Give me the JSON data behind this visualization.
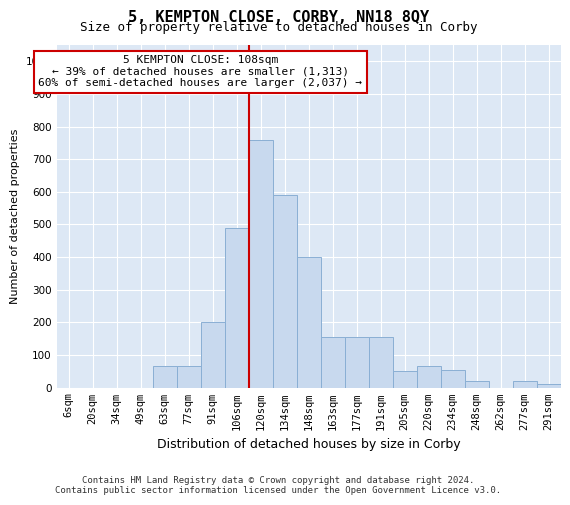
{
  "title": "5, KEMPTON CLOSE, CORBY, NN18 8QY",
  "subtitle": "Size of property relative to detached houses in Corby",
  "xlabel": "Distribution of detached houses by size in Corby",
  "ylabel": "Number of detached properties",
  "footer_line1": "Contains HM Land Registry data © Crown copyright and database right 2024.",
  "footer_line2": "Contains public sector information licensed under the Open Government Licence v3.0.",
  "annotation_title": "5 KEMPTON CLOSE: 108sqm",
  "annotation_line1": "← 39% of detached houses are smaller (1,313)",
  "annotation_line2": "60% of semi-detached houses are larger (2,037) →",
  "bar_color": "#c8d9ee",
  "bar_edge_color": "#8aafd4",
  "vline_color": "#cc0000",
  "annotation_box_edgecolor": "#cc0000",
  "background_color": "#dde8f5",
  "tick_labels": [
    "6sqm",
    "20sqm",
    "34sqm",
    "49sqm",
    "63sqm",
    "77sqm",
    "91sqm",
    "106sqm",
    "120sqm",
    "134sqm",
    "148sqm",
    "163sqm",
    "177sqm",
    "191sqm",
    "205sqm",
    "220sqm",
    "234sqm",
    "248sqm",
    "262sqm",
    "277sqm",
    "291sqm"
  ],
  "bar_values": [
    0,
    0,
    0,
    0,
    65,
    65,
    200,
    490,
    760,
    590,
    400,
    155,
    155,
    155,
    50,
    65,
    55,
    20,
    0,
    20,
    10
  ],
  "ylim": [
    0,
    1050
  ],
  "yticks": [
    0,
    100,
    200,
    300,
    400,
    500,
    600,
    700,
    800,
    900,
    1000
  ],
  "vline_x": 7.5,
  "title_fontsize": 11,
  "subtitle_fontsize": 9,
  "ylabel_fontsize": 8,
  "xlabel_fontsize": 9,
  "tick_fontsize": 7.5,
  "annotation_fontsize": 8,
  "footer_fontsize": 6.5
}
